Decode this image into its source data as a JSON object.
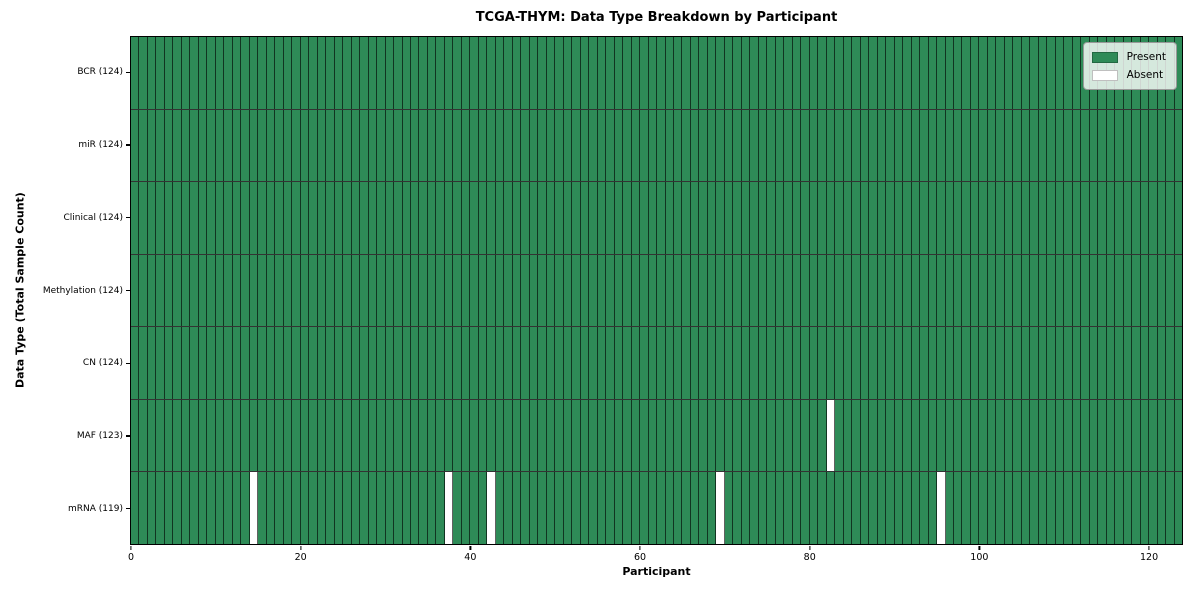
{
  "chart_data": {
    "type": "heatmap",
    "title": "TCGA-THYM: Data Type Breakdown by Participant",
    "xlabel": "Participant",
    "ylabel": "Data Type (Total Sample Count)",
    "xlim": [
      0,
      124
    ],
    "n_participants": 124,
    "x_ticks": [
      0,
      20,
      40,
      60,
      80,
      100,
      120
    ],
    "grid": false,
    "rows": [
      {
        "label": "BCR (124)",
        "data_type": "BCR",
        "total": 124,
        "absent_participants": []
      },
      {
        "label": "miR (124)",
        "data_type": "miR",
        "total": 124,
        "absent_participants": []
      },
      {
        "label": "Clinical (124)",
        "data_type": "Clinical",
        "total": 124,
        "absent_participants": []
      },
      {
        "label": "Methylation (124)",
        "data_type": "Methylation",
        "total": 124,
        "absent_participants": []
      },
      {
        "label": "CN (124)",
        "data_type": "CN",
        "total": 124,
        "absent_participants": []
      },
      {
        "label": "MAF (123)",
        "data_type": "MAF",
        "total": 123,
        "absent_participants": [
          82
        ]
      },
      {
        "label": "mRNA (119)",
        "data_type": "mRNA",
        "total": 119,
        "absent_participants": [
          14,
          37,
          42,
          69,
          95
        ]
      }
    ],
    "legend": {
      "position": "upper right",
      "items": [
        {
          "label": "Present",
          "color": "#2e8b57"
        },
        {
          "label": "Absent",
          "color": "#ffffff"
        }
      ]
    },
    "colors": {
      "present": "#2e8b57",
      "absent": "#ffffff",
      "edge": "#000000"
    }
  }
}
